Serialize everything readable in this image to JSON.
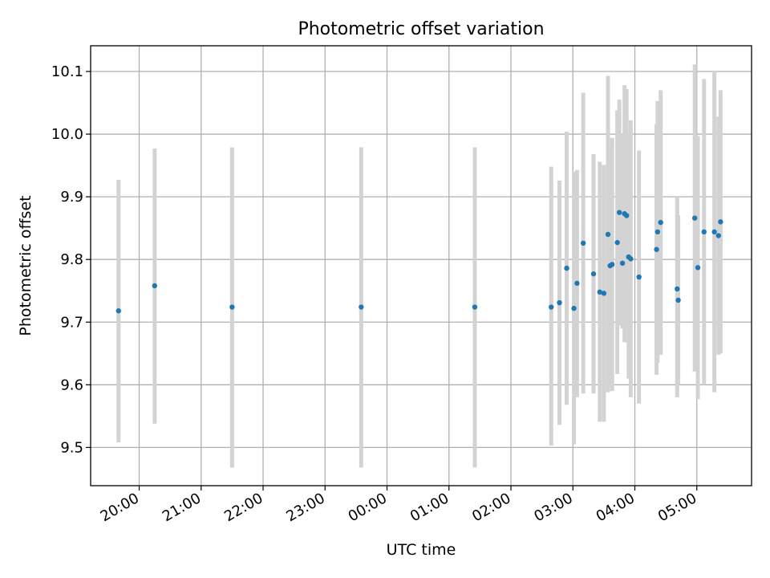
{
  "chart_data": {
    "type": "scatter",
    "title": "Photometric offset variation",
    "xlabel": "UTC time",
    "ylabel": "Photometric offset",
    "x_unit": "UTC time (HH:MM), starting 19:00 on day 1",
    "xlim": [
      "19:13",
      "05:53"
    ],
    "ylim": [
      9.439,
      10.141
    ],
    "x_ticks": [
      {
        "t": "20:00",
        "label": "20:00"
      },
      {
        "t": "21:00",
        "label": "21:00"
      },
      {
        "t": "22:00",
        "label": "22:00"
      },
      {
        "t": "23:00",
        "label": "23:00"
      },
      {
        "t": "00:00",
        "label": "00:00"
      },
      {
        "t": "01:00",
        "label": "01:00"
      },
      {
        "t": "02:00",
        "label": "02:00"
      },
      {
        "t": "03:00",
        "label": "03:00"
      },
      {
        "t": "04:00",
        "label": "04:00"
      },
      {
        "t": "05:00",
        "label": "05:00"
      }
    ],
    "y_ticks": [
      9.5,
      9.6,
      9.7,
      9.8,
      9.9,
      10.0,
      10.1
    ],
    "y_tick_labels": [
      "9.5",
      "9.6",
      "9.7",
      "9.8",
      "9.9",
      "10.0",
      "10.1"
    ],
    "grid": true,
    "marker_color": "#1f77b4",
    "errorbar_color": "#d3d3d3",
    "points": [
      {
        "t": "19:40",
        "y": 9.718,
        "lo": 9.508,
        "hi": 9.927
      },
      {
        "t": "20:15",
        "y": 9.758,
        "lo": 9.538,
        "hi": 9.977
      },
      {
        "t": "21:30",
        "y": 9.724,
        "lo": 9.468,
        "hi": 9.979
      },
      {
        "t": "23:35",
        "y": 9.724,
        "lo": 9.468,
        "hi": 9.979
      },
      {
        "t": "01:25",
        "y": 9.724,
        "lo": 9.468,
        "hi": 9.979
      },
      {
        "t": "02:39",
        "y": 9.724,
        "lo": 9.503,
        "hi": 9.948
      },
      {
        "t": "02:47",
        "y": 9.731,
        "lo": 9.536,
        "hi": 9.926
      },
      {
        "t": "02:54",
        "y": 9.786,
        "lo": 9.568,
        "hi": 10.004
      },
      {
        "t": "03:01",
        "y": 9.722,
        "lo": 9.505,
        "hi": 9.94
      },
      {
        "t": "03:04",
        "y": 9.762,
        "lo": 9.58,
        "hi": 9.943
      },
      {
        "t": "03:10",
        "y": 9.826,
        "lo": 9.586,
        "hi": 10.066
      },
      {
        "t": "03:20",
        "y": 9.777,
        "lo": 9.586,
        "hi": 9.968
      },
      {
        "t": "03:26",
        "y": 9.748,
        "lo": 9.541,
        "hi": 9.956
      },
      {
        "t": "03:30",
        "y": 9.746,
        "lo": 9.541,
        "hi": 9.951
      },
      {
        "t": "03:34",
        "y": 9.84,
        "lo": 9.588,
        "hi": 10.093
      },
      {
        "t": "03:36",
        "y": 9.79,
        "lo": 9.6,
        "hi": 9.98
      },
      {
        "t": "03:38",
        "y": 9.792,
        "lo": 9.59,
        "hi": 9.994
      },
      {
        "t": "03:43",
        "y": 9.827,
        "lo": 9.617,
        "hi": 10.038
      },
      {
        "t": "03:45",
        "y": 9.875,
        "lo": 9.695,
        "hi": 10.055
      },
      {
        "t": "03:48",
        "y": 9.794,
        "lo": 9.69,
        "hi": 10.0
      },
      {
        "t": "03:50",
        "y": 9.873,
        "lo": 9.668,
        "hi": 10.078
      },
      {
        "t": "03:52",
        "y": 9.87,
        "lo": 9.668,
        "hi": 10.072
      },
      {
        "t": "03:54",
        "y": 9.804,
        "lo": 9.61,
        "hi": 9.998
      },
      {
        "t": "03:56",
        "y": 9.801,
        "lo": 9.58,
        "hi": 10.022
      },
      {
        "t": "04:04",
        "y": 9.772,
        "lo": 9.57,
        "hi": 9.974
      },
      {
        "t": "04:21",
        "y": 9.816,
        "lo": 9.616,
        "hi": 10.016
      },
      {
        "t": "04:22",
        "y": 9.844,
        "lo": 9.635,
        "hi": 10.053
      },
      {
        "t": "04:25",
        "y": 9.859,
        "lo": 9.648,
        "hi": 10.07
      },
      {
        "t": "04:41",
        "y": 9.753,
        "lo": 9.58,
        "hi": 9.9
      },
      {
        "t": "04:42",
        "y": 9.735,
        "lo": 9.6,
        "hi": 9.87
      },
      {
        "t": "04:58",
        "y": 9.866,
        "lo": 9.621,
        "hi": 10.111
      },
      {
        "t": "05:01",
        "y": 9.787,
        "lo": 9.577,
        "hi": 9.997
      },
      {
        "t": "05:07",
        "y": 9.844,
        "lo": 9.6,
        "hi": 10.088
      },
      {
        "t": "05:17",
        "y": 9.844,
        "lo": 9.588,
        "hi": 10.1
      },
      {
        "t": "05:21",
        "y": 9.838,
        "lo": 9.648,
        "hi": 10.028
      },
      {
        "t": "05:23",
        "y": 9.86,
        "lo": 9.65,
        "hi": 10.07
      }
    ]
  }
}
